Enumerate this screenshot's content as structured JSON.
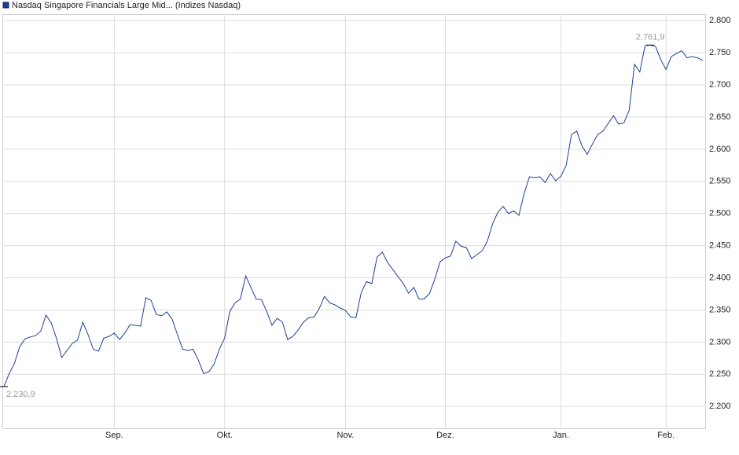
{
  "chart_data": {
    "type": "line",
    "legend": "Nasdaq Singapore Financials Large Mid... (Indizes Nasdaq)",
    "color": "#1c3f94",
    "grid": true,
    "series": [
      {
        "name": "Nasdaq Singapore Financials Large Mid... (Indizes Nasdaq)",
        "color": "#1c3f94",
        "values": [
          2230.9,
          2251,
          2267,
          2293,
          2305,
          2308,
          2310,
          2317,
          2342,
          2330,
          2306,
          2276,
          2287,
          2298,
          2303,
          2331,
          2312,
          2289,
          2286,
          2306,
          2309,
          2314,
          2304,
          2314,
          2327,
          2326,
          2325,
          2369,
          2365,
          2343,
          2341,
          2347,
          2336,
          2312,
          2289,
          2287,
          2289,
          2272,
          2251,
          2254,
          2266,
          2289,
          2306,
          2348,
          2361,
          2367,
          2403,
          2385,
          2367,
          2366,
          2348,
          2326,
          2337,
          2331,
          2304,
          2309,
          2319,
          2331,
          2338,
          2339,
          2352,
          2371,
          2361,
          2358,
          2353,
          2349,
          2339,
          2338,
          2377,
          2394,
          2391,
          2432,
          2440,
          2424,
          2413,
          2402,
          2391,
          2376,
          2385,
          2367,
          2367,
          2376,
          2398,
          2425,
          2431,
          2434,
          2457,
          2449,
          2447,
          2430,
          2436,
          2442,
          2457,
          2484,
          2502,
          2511,
          2500,
          2504,
          2497,
          2531,
          2557,
          2556,
          2557,
          2548,
          2562,
          2551,
          2558,
          2575,
          2623,
          2628,
          2605,
          2592,
          2608,
          2623,
          2628,
          2640,
          2652,
          2639,
          2641,
          2661,
          2732,
          2720,
          2761,
          2761.9,
          2760,
          2739,
          2724,
          2744,
          2749,
          2753,
          2742,
          2744,
          2742,
          2738
        ],
        "value_labels": [
          "2.230,9",
          null,
          null,
          null,
          null,
          null,
          null,
          null,
          null,
          null,
          null,
          null,
          null,
          null,
          null,
          null,
          null,
          null,
          null,
          null,
          null,
          null,
          null,
          null,
          null,
          null,
          null,
          null,
          null,
          null,
          null,
          null,
          null,
          null,
          null,
          null,
          null,
          null,
          null,
          null,
          null,
          null,
          null,
          null,
          null,
          null,
          null,
          null,
          null,
          null,
          null,
          null,
          null,
          null,
          null,
          null,
          null,
          null,
          null,
          null,
          null,
          null,
          null,
          null,
          null,
          null,
          null,
          null,
          null,
          null,
          null,
          null,
          null,
          null,
          null,
          null,
          null,
          null,
          null,
          null,
          null,
          null,
          null,
          null,
          null,
          null,
          null,
          null,
          null,
          null,
          null,
          null,
          null,
          null,
          null,
          null,
          null,
          null,
          null,
          null,
          null,
          null,
          null,
          null,
          null,
          null,
          null,
          null,
          null,
          null,
          null,
          null,
          null,
          null,
          null,
          null,
          null,
          null,
          null,
          null,
          null,
          null,
          null,
          "2.761,9",
          null,
          null,
          null,
          null,
          null,
          null,
          null,
          null,
          null,
          null
        ]
      }
    ],
    "xlim": [
      0,
      133.6
    ],
    "xticks": [
      {
        "value": 21,
        "label": "Sep."
      },
      {
        "value": 42,
        "label": "Okt."
      },
      {
        "value": 65,
        "label": "Nov."
      },
      {
        "value": 84,
        "label": "Dez."
      },
      {
        "value": 106,
        "label": "Jan."
      },
      {
        "value": 126,
        "label": "Feb."
      }
    ],
    "ylim": [
      2166,
      2810
    ],
    "yticks": [
      {
        "value": 2200,
        "label": "2.200"
      },
      {
        "value": 2250,
        "label": "2.250"
      },
      {
        "value": 2300,
        "label": "2.300"
      },
      {
        "value": 2350,
        "label": "2.350"
      },
      {
        "value": 2400,
        "label": "2.400"
      },
      {
        "value": 2450,
        "label": "2.450"
      },
      {
        "value": 2500,
        "label": "2.500"
      },
      {
        "value": 2550,
        "label": "2.550"
      },
      {
        "value": 2600,
        "label": "2.600"
      },
      {
        "value": 2650,
        "label": "2.650"
      },
      {
        "value": 2700,
        "label": "2.700"
      },
      {
        "value": 2750,
        "label": "2.750"
      },
      {
        "value": 2800,
        "label": "2.800"
      }
    ]
  }
}
